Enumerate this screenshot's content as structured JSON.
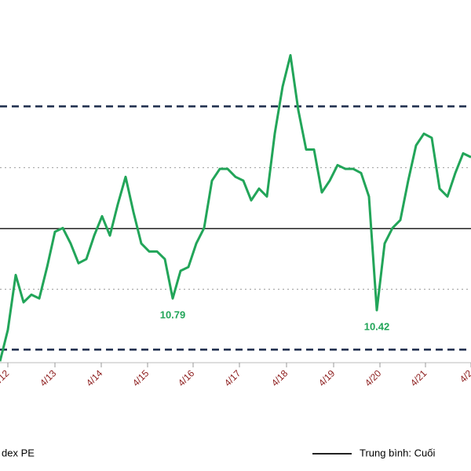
{
  "chart_data": {
    "type": "line",
    "series": [
      {
        "name": "dex PE",
        "color": "#22a559",
        "values": [
          8.81,
          9.8,
          11.53,
          10.67,
          10.91,
          10.79,
          11.78,
          12.89,
          13.01,
          12.52,
          11.9,
          12.03,
          12.77,
          13.38,
          12.77,
          13.75,
          14.62,
          13.51,
          12.52,
          12.27,
          12.27,
          12.03,
          10.79,
          11.66,
          11.78,
          12.52,
          13.01,
          14.5,
          14.87,
          14.87,
          14.62,
          14.5,
          13.88,
          14.25,
          14.0,
          15.98,
          17.46,
          18.45,
          16.72,
          15.48,
          15.48,
          14.13,
          14.5,
          14.99,
          14.87,
          14.87,
          14.74,
          14.0,
          10.42,
          12.52,
          13.01,
          13.26,
          14.5,
          15.61,
          15.98,
          15.85,
          14.25,
          14.0,
          14.74,
          15.36,
          15.24
        ],
        "value_labels": [
          null,
          null,
          null,
          null,
          null,
          null,
          null,
          null,
          null,
          null,
          null,
          null,
          null,
          null,
          null,
          null,
          null,
          null,
          null,
          null,
          null,
          null,
          "10.79",
          null,
          null,
          null,
          null,
          null,
          null,
          null,
          null,
          null,
          null,
          null,
          null,
          null,
          null,
          null,
          null,
          null,
          null,
          null,
          null,
          null,
          null,
          null,
          null,
          null,
          "10.42",
          null,
          null,
          null,
          null,
          null,
          null,
          null,
          null,
          null,
          null,
          null,
          null
        ]
      }
    ],
    "reference_lines": [
      {
        "value": 12.99,
        "style": "solid",
        "color": "#222222",
        "name": "Trung bình: Cuối"
      },
      {
        "value": 14.91,
        "style": "dotted",
        "color": "#aaaaaa"
      },
      {
        "value": 11.08,
        "style": "dotted",
        "color": "#aaaaaa"
      },
      {
        "value": 16.84,
        "style": "dashed",
        "color": "#1a2a4a"
      },
      {
        "value": 9.18,
        "style": "dashed",
        "color": "#1a2a4a"
      }
    ],
    "xlim": [
      0,
      60
    ],
    "xticks": [
      {
        "value": 1,
        "label": "/12"
      },
      {
        "value": 7,
        "label": "4/13"
      },
      {
        "value": 12.9,
        "label": "4/14"
      },
      {
        "value": 18.8,
        "label": "4/15"
      },
      {
        "value": 24.6,
        "label": "4/16"
      },
      {
        "value": 30.5,
        "label": "4/17"
      },
      {
        "value": 36.5,
        "label": "4/18"
      },
      {
        "value": 42.5,
        "label": "4/19"
      },
      {
        "value": 48.4,
        "label": "4/20"
      },
      {
        "value": 54.2,
        "label": "4/21"
      },
      {
        "value": 60,
        "label": "4/2"
      }
    ],
    "ylim": [
      8.57,
      20.19
    ]
  }
}
